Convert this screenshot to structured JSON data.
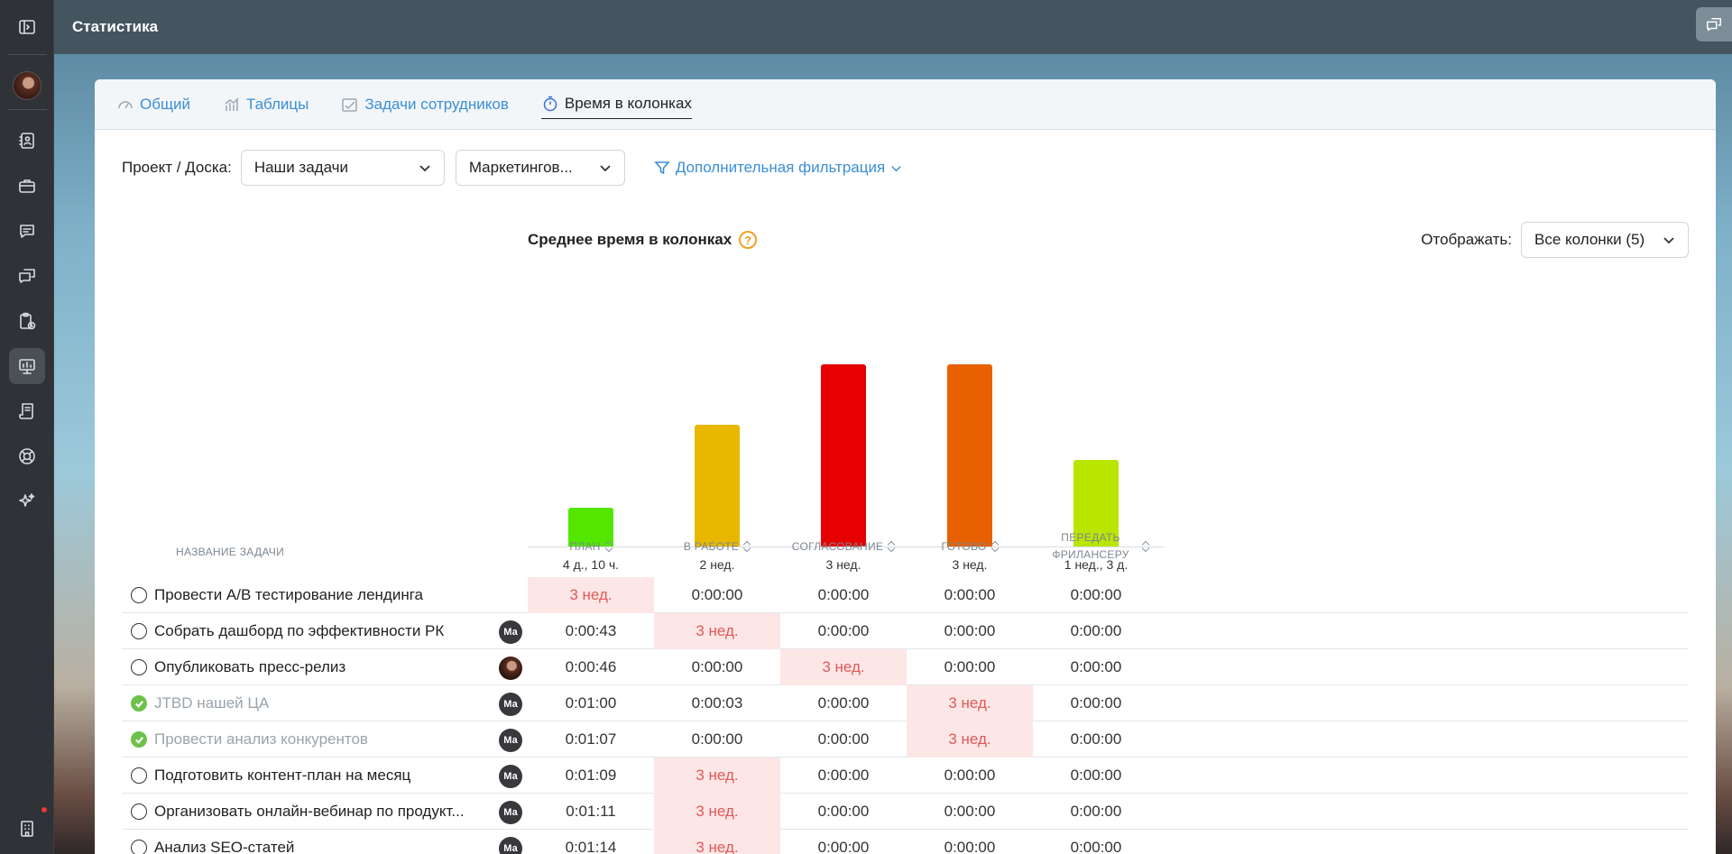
{
  "app": {
    "title": "Статистика"
  },
  "rail": {
    "items": [
      {
        "name": "collapse-sidebar-icon"
      },
      {
        "name": "avatar"
      },
      {
        "name": "contacts-icon"
      },
      {
        "name": "briefcase-icon"
      },
      {
        "name": "chat-icon"
      },
      {
        "name": "messages-icon"
      },
      {
        "name": "task-clipboard-icon"
      },
      {
        "name": "statistics-icon",
        "active": true
      },
      {
        "name": "document-icon"
      },
      {
        "name": "support-icon"
      },
      {
        "name": "sparkles-icon"
      },
      {
        "name": "company-icon"
      }
    ]
  },
  "tabs": [
    {
      "label": "Общий",
      "icon": "gauge-icon"
    },
    {
      "label": "Таблицы",
      "icon": "chart-icon"
    },
    {
      "label": "Задачи сотрудников",
      "icon": "checklist-icon"
    },
    {
      "label": "Время в колонках",
      "icon": "stopwatch-icon",
      "active": true
    }
  ],
  "filters": {
    "label": "Проект / Доска:",
    "project": "Наши задачи",
    "board": "Маркетингов...",
    "extra": "Дополнительная фильтрация"
  },
  "chart_header": {
    "title": "Среднее время в колонках",
    "display_label": "Отображать:",
    "display_value": "Все колонки (5)"
  },
  "chart_data": {
    "type": "bar",
    "title": "Среднее время в колонках",
    "categories": [
      "План",
      "В работе",
      "Согласование",
      "Готово",
      "Передать фрилансеру"
    ],
    "values_days": [
      4.42,
      14,
      21,
      21,
      10
    ],
    "labels": [
      "4 д., 10 ч.",
      "2 нед.",
      "3 нед.",
      "3 нед.",
      "1 нед., 3 д."
    ],
    "colors": [
      "#52e600",
      "#e8b800",
      "#e60000",
      "#e86000",
      "#b8e600"
    ],
    "ylim": [
      0,
      21
    ],
    "grid": false,
    "legend": "none"
  },
  "table": {
    "headers": {
      "task": "НАЗВАНИЕ ЗАДАЧИ",
      "plan": "ПЛАН",
      "in_work": "В РАБОТЕ",
      "approval": "СОГЛАСОВАНИЕ",
      "ready": "ГОТОВО",
      "freelancer_line1": "ПЕРЕДАТЬ",
      "freelancer_line2": "ФРИЛАНСЕРУ"
    },
    "rows": [
      {
        "task": "Провести A/B тестирование лендинга",
        "done": false,
        "assignee": "",
        "cells": [
          "3 нед.",
          "0:00:00",
          "0:00:00",
          "0:00:00",
          "0:00:00"
        ],
        "hl": 0
      },
      {
        "task": "Собрать дашборд по эффективности РК",
        "done": false,
        "assignee": "Ма",
        "cells": [
          "0:00:43",
          "3 нед.",
          "0:00:00",
          "0:00:00",
          "0:00:00"
        ],
        "hl": 1
      },
      {
        "task": "Опубликовать пресс-релиз",
        "done": false,
        "assignee": "photo",
        "cells": [
          "0:00:46",
          "0:00:00",
          "3 нед.",
          "0:00:00",
          "0:00:00"
        ],
        "hl": 2
      },
      {
        "task": "JTBD нашей ЦА",
        "done": true,
        "assignee": "Ма",
        "cells": [
          "0:01:00",
          "0:00:03",
          "0:00:00",
          "3 нед.",
          "0:00:00"
        ],
        "hl": 3
      },
      {
        "task": "Провести анализ конкурентов",
        "done": true,
        "assignee": "Ма",
        "cells": [
          "0:01:07",
          "0:00:00",
          "0:00:00",
          "3 нед.",
          "0:00:00"
        ],
        "hl": 3
      },
      {
        "task": "Подготовить контент-план на месяц",
        "done": false,
        "assignee": "Ма",
        "cells": [
          "0:01:09",
          "3 нед.",
          "0:00:00",
          "0:00:00",
          "0:00:00"
        ],
        "hl": 1
      },
      {
        "task": "Организовать онлайн-вебинар по продукт...",
        "done": false,
        "assignee": "Ма",
        "cells": [
          "0:01:11",
          "3 нед.",
          "0:00:00",
          "0:00:00",
          "0:00:00"
        ],
        "hl": 1
      },
      {
        "task": "Анализ SEO-статей",
        "done": false,
        "assignee": "Ма",
        "cells": [
          "0:01:14",
          "3 нед.",
          "0:00:00",
          "0:00:00",
          "0:00:00"
        ],
        "hl": 1
      }
    ]
  }
}
